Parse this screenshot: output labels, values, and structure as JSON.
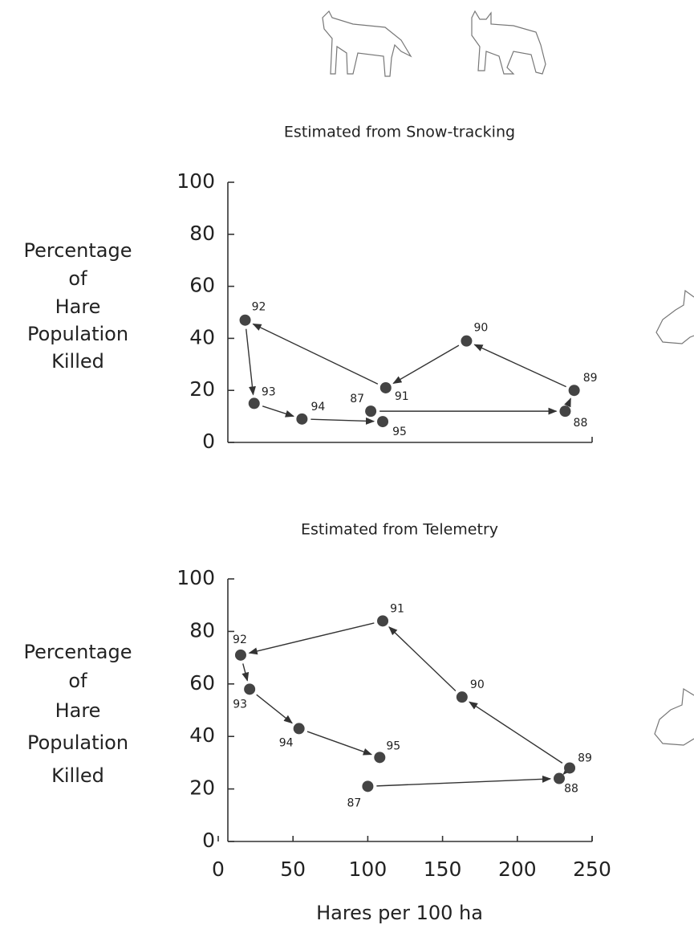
{
  "chart_data": [
    {
      "type": "scatter",
      "title": "Estimated from Snow-tracking",
      "ylabel": [
        "Percentage",
        "of",
        "Hare",
        "Population",
        "Killed"
      ],
      "point_labels": [
        "87",
        "88",
        "89",
        "90",
        "91",
        "92",
        "93",
        "94",
        "95"
      ],
      "x": [
        102,
        232,
        238,
        166,
        112,
        18,
        24,
        56,
        110
      ],
      "values": [
        12,
        12,
        20,
        39,
        21,
        47,
        15,
        9,
        8
      ],
      "color": "#444444",
      "xlim": [
        0,
        250
      ],
      "ylim": [
        0,
        100
      ],
      "yticks": [
        0,
        20,
        40,
        60,
        80,
        100
      ]
    },
    {
      "type": "scatter",
      "title": "Estimated from Telemetry",
      "ylabel": [
        "Percentage",
        "of",
        "Hare",
        "Population",
        "Killed"
      ],
      "xlabel": "Hares per 100 ha",
      "point_labels": [
        "87",
        "88",
        "89",
        "90",
        "91",
        "92",
        "93",
        "94",
        "95"
      ],
      "x": [
        100,
        228,
        235,
        163,
        110,
        15,
        21,
        54,
        108
      ],
      "values": [
        21,
        24,
        28,
        55,
        84,
        71,
        58,
        43,
        32
      ],
      "color": "#444444",
      "xlim": [
        0,
        250
      ],
      "ylim": [
        0,
        100
      ],
      "yticks": [
        0,
        20,
        40,
        60,
        80,
        100
      ],
      "xticks": [
        0,
        50,
        100,
        150,
        200,
        250
      ]
    }
  ]
}
